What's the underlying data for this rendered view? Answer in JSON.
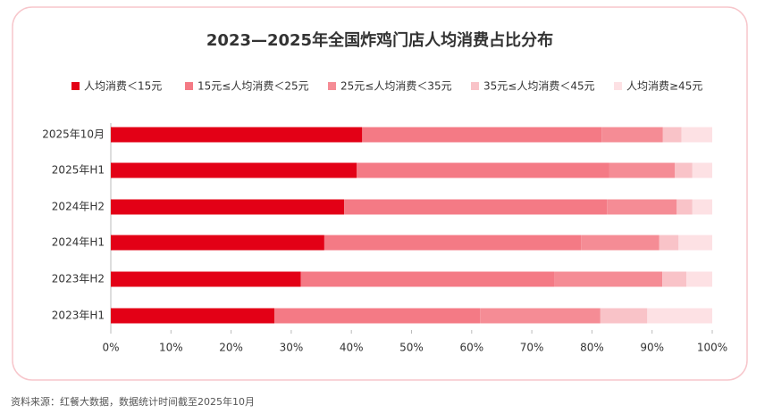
{
  "chart_data": {
    "type": "stacked_barh",
    "title": "2023—2025年全国炸鸡门店人均消费占比分布",
    "categories": [
      "2025年10月",
      "2025年H1",
      "2024年H2",
      "2024年H1",
      "2023年H2",
      "2023年H1"
    ],
    "series": [
      {
        "name": "人均消费＜15元",
        "color": "#e30016",
        "values": [
          41.8,
          40.9,
          38.8,
          35.5,
          31.6,
          27.2
        ]
      },
      {
        "name": "15元≤人均消费＜25元",
        "color": "#f47a85",
        "values": [
          39.8,
          42.0,
          43.7,
          42.7,
          42.2,
          34.2
        ]
      },
      {
        "name": "25元≤人均消费＜35元",
        "color": "#f58c95",
        "values": [
          10.2,
          10.9,
          11.6,
          13.0,
          17.9,
          20.0
        ]
      },
      {
        "name": "35元≤人均消费＜45元",
        "color": "#f9c3c8",
        "values": [
          3.1,
          2.9,
          2.6,
          3.2,
          4.0,
          7.8
        ]
      },
      {
        "name": "人均消费≥45元",
        "color": "#fde1e4",
        "values": [
          5.1,
          3.3,
          3.3,
          5.6,
          4.3,
          10.8
        ]
      }
    ],
    "xlim": [
      0,
      100
    ],
    "xticks": [
      {
        "value": 0,
        "label": "0%"
      },
      {
        "value": 10,
        "label": "10%"
      },
      {
        "value": 20,
        "label": "20%"
      },
      {
        "value": 30,
        "label": "30%"
      },
      {
        "value": 40,
        "label": "40%"
      },
      {
        "value": 50,
        "label": "50%"
      },
      {
        "value": 60,
        "label": "60%"
      },
      {
        "value": 70,
        "label": "70%"
      },
      {
        "value": 80,
        "label": "80%"
      },
      {
        "value": 90,
        "label": "90%"
      },
      {
        "value": 100,
        "label": "100%"
      }
    ],
    "source": "资料来源：红餐大数据，数据统计时间截至2025年10月"
  }
}
